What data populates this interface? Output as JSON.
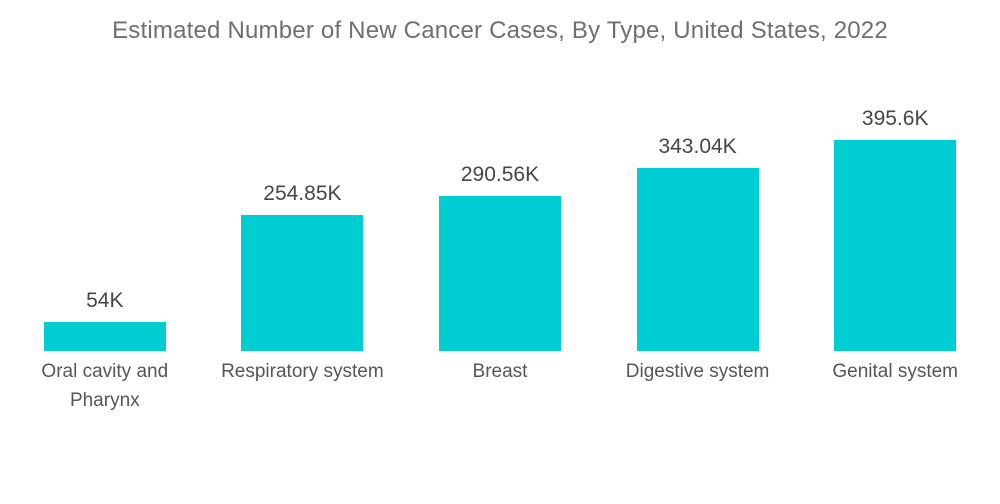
{
  "header": {
    "title": "Estimated Number of New Cancer Cases, By Type, United States, 2022"
  },
  "colors": {
    "background": "#ffffff",
    "bar": "#00cdd1",
    "title_text": "#6f6f6f",
    "value_text": "#464646",
    "category_text": "#565656"
  },
  "chart_data": {
    "type": "bar",
    "title": "Estimated Number of New Cancer Cases, By Type, United States, 2022",
    "categories": [
      "Oral cavity and Pharynx",
      "Respiratory system",
      "Breast",
      "Digestive system",
      "Genital system"
    ],
    "values": [
      54,
      254.85,
      290.56,
      343.04,
      395.6
    ],
    "value_labels": [
      "54K",
      "254.85K",
      "290.56K",
      "343.04K",
      "395.6K"
    ],
    "unit": "K cases",
    "xlabel": "",
    "ylabel": "",
    "ylim": [
      0,
      420
    ],
    "grid": false,
    "legend": false,
    "axes_visible": false,
    "bar_color": "#00cdd1"
  }
}
